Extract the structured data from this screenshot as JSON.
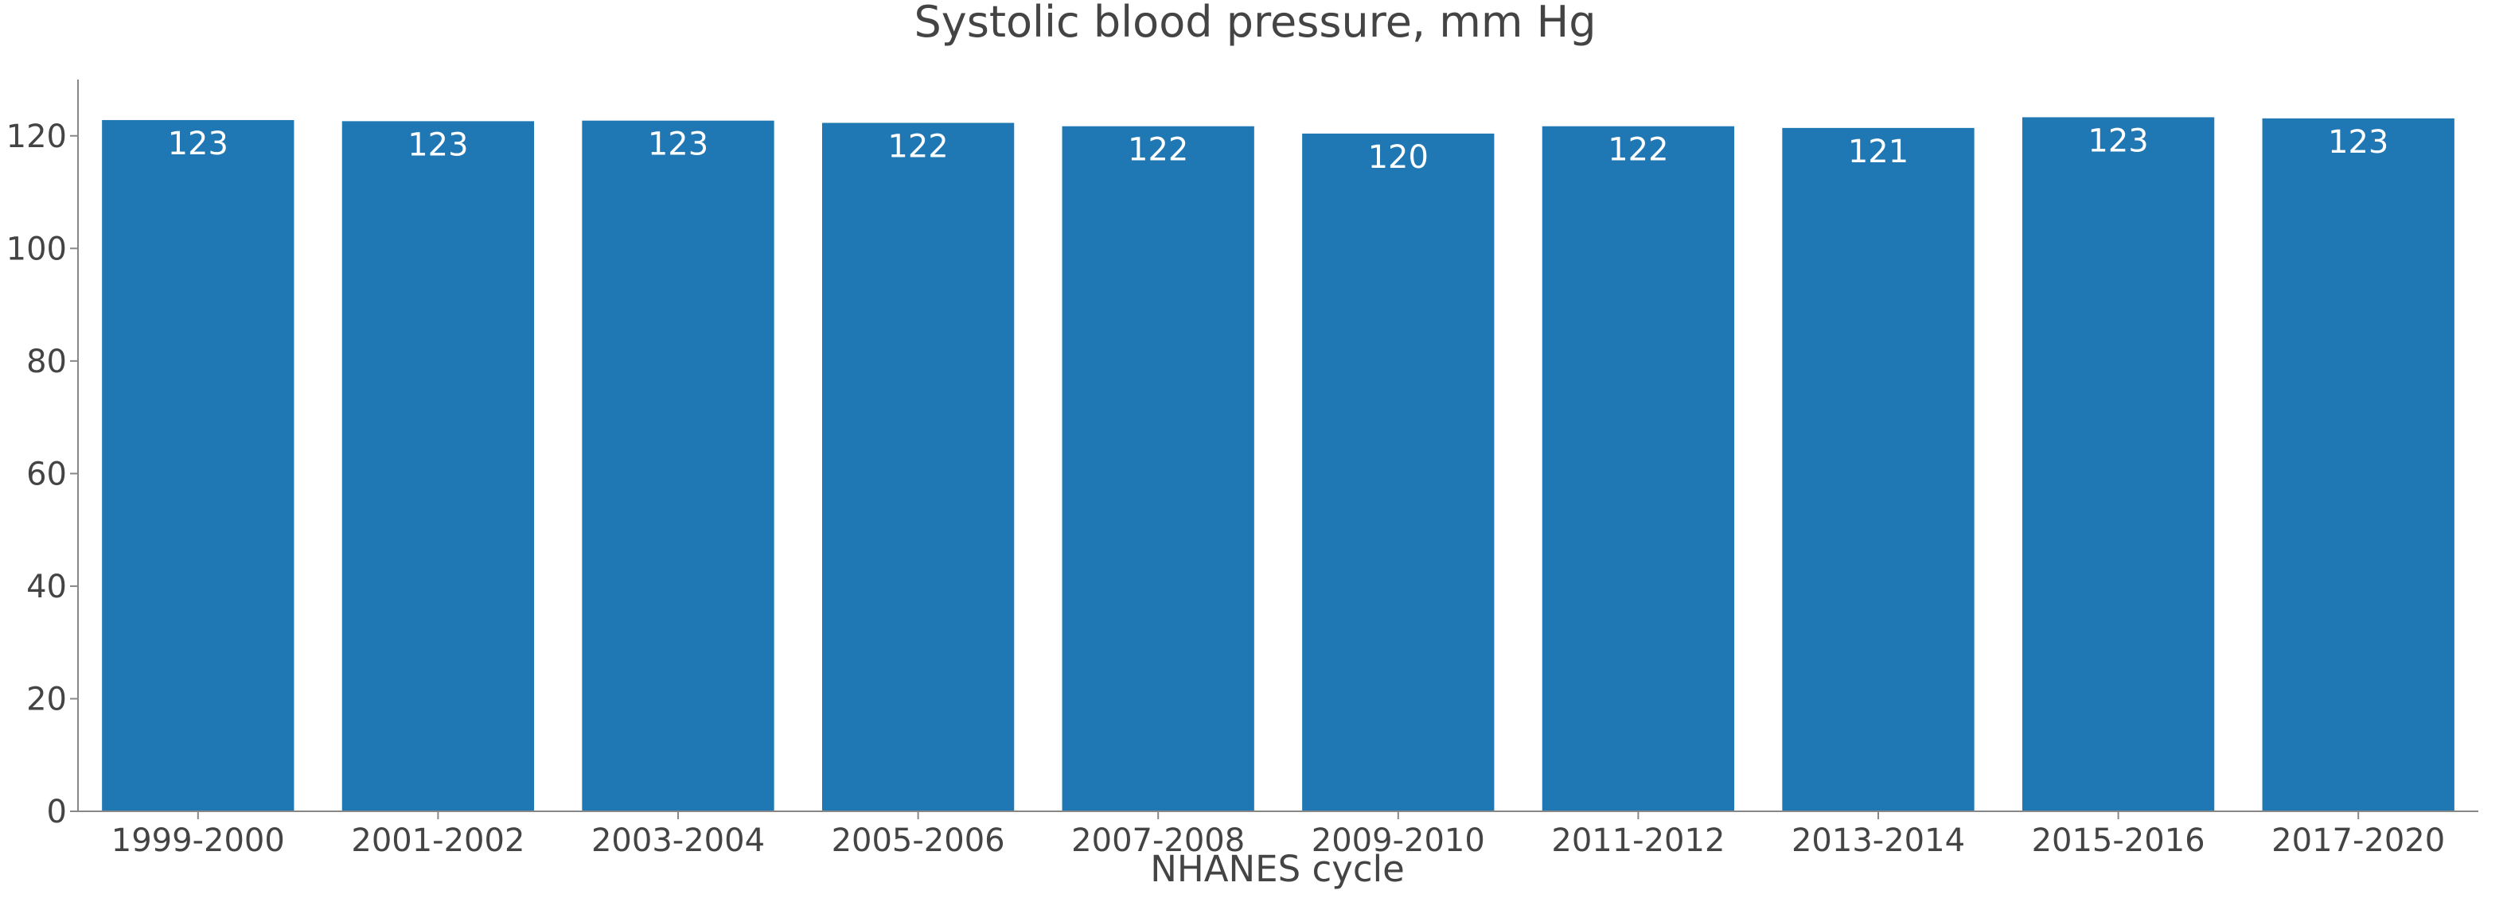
{
  "chart_data": {
    "type": "bar",
    "title": "Systolic blood pressure, mm Hg",
    "xlabel": "NHANES cycle",
    "ylabel": "",
    "categories": [
      "1999-2000",
      "2001-2002",
      "2003-2004",
      "2005-2006",
      "2007-2008",
      "2009-2010",
      "2011-2012",
      "2013-2014",
      "2015-2016",
      "2017-2020"
    ],
    "values": [
      122.8,
      122.6,
      122.7,
      122.3,
      121.7,
      120.4,
      121.7,
      121.4,
      123.3,
      123.1
    ],
    "data_labels": [
      "123",
      "123",
      "123",
      "122",
      "122",
      "120",
      "122",
      "121",
      "123",
      "123"
    ],
    "ylim": [
      0,
      130
    ],
    "yticks": [
      0,
      20,
      40,
      60,
      80,
      100,
      120
    ],
    "grid": false,
    "legend": "none",
    "colors": {
      "bar": "#1f77b4",
      "axis": "#888888",
      "text": "#444444",
      "label": "#ffffff"
    }
  }
}
